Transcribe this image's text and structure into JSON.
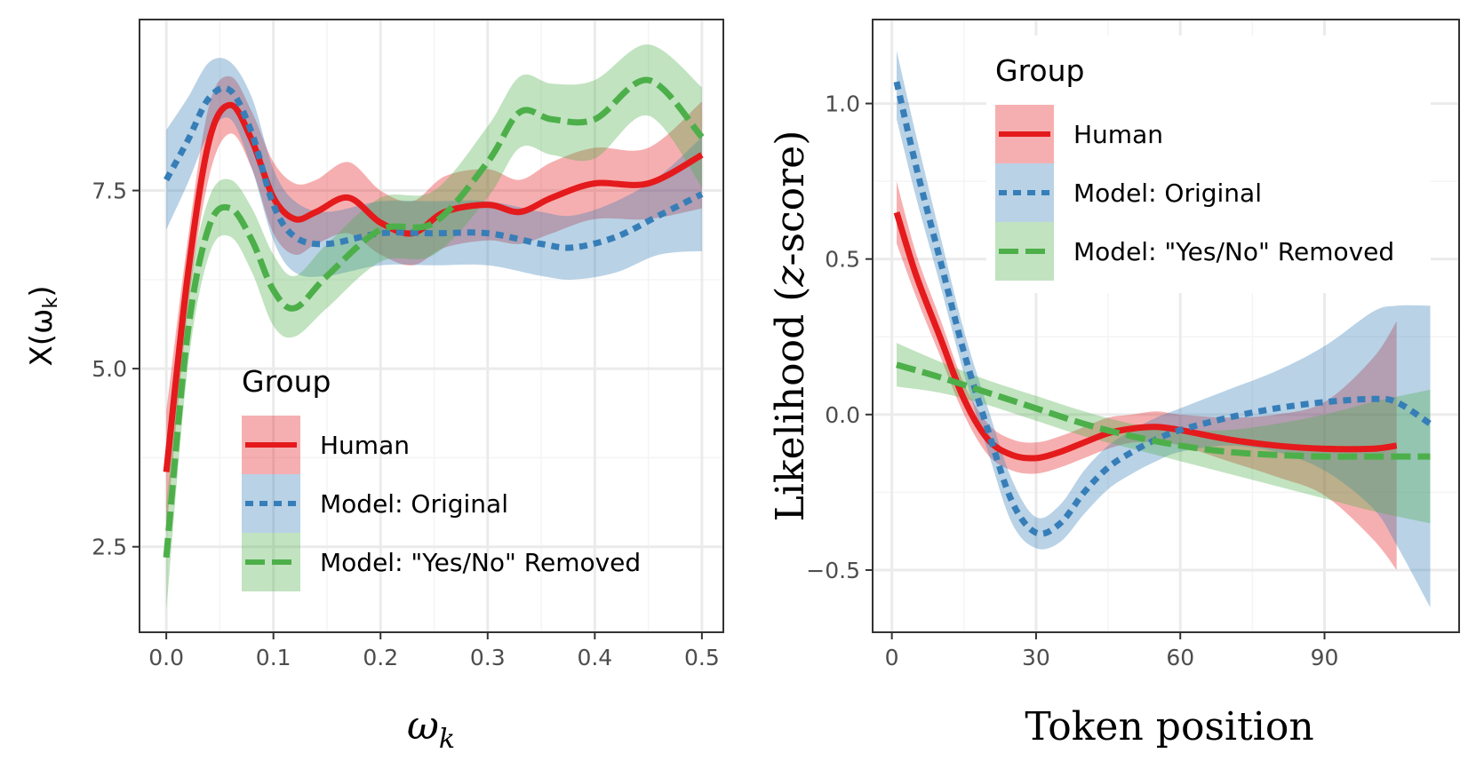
{
  "chart_data": [
    {
      "type": "line",
      "xlabel": "ω",
      "xlabel_subscript": "k",
      "ylabel": "X(ω",
      "ylabel_subscript": "k",
      "ylabel_close": ")",
      "xlim": [
        -0.025,
        0.52
      ],
      "ylim": [
        1.3,
        9.9
      ],
      "xticks": [
        0.0,
        0.1,
        0.2,
        0.3,
        0.4,
        0.5
      ],
      "xtick_labels": [
        "0.0",
        "0.1",
        "0.2",
        "0.3",
        "0.4",
        "0.5"
      ],
      "yticks": [
        2.5,
        5.0,
        7.5
      ],
      "ytick_labels": [
        "2.5",
        "5.0",
        "7.5"
      ],
      "legend": {
        "title": "Group",
        "position": "bottom-center",
        "entries": [
          "Human",
          "Model: Original",
          "Model: \"Yes/No\" Removed"
        ]
      },
      "series": [
        {
          "name": "Human",
          "color": "#e41a1c",
          "dash": "solid",
          "x": [
            0.0,
            0.02,
            0.04,
            0.06,
            0.08,
            0.1,
            0.12,
            0.14,
            0.17,
            0.2,
            0.23,
            0.26,
            0.3,
            0.33,
            0.36,
            0.4,
            0.45,
            0.5
          ],
          "y": [
            3.55,
            6.3,
            8.2,
            8.7,
            8.2,
            7.4,
            7.1,
            7.2,
            7.4,
            7.05,
            6.9,
            7.2,
            7.3,
            7.2,
            7.4,
            7.6,
            7.6,
            8.0
          ],
          "lower": [
            2.7,
            5.8,
            7.7,
            8.3,
            7.8,
            6.9,
            6.6,
            6.75,
            6.9,
            6.6,
            6.45,
            6.7,
            6.8,
            6.75,
            6.9,
            7.1,
            7.1,
            7.25
          ],
          "upper": [
            4.4,
            6.8,
            8.7,
            9.1,
            8.6,
            7.9,
            7.6,
            7.65,
            7.9,
            7.5,
            7.35,
            7.7,
            7.8,
            7.65,
            7.9,
            8.1,
            8.1,
            8.75
          ]
        },
        {
          "name": "Model: Original",
          "color": "#377eb8",
          "dash": "dotted",
          "x": [
            0.0,
            0.02,
            0.04,
            0.06,
            0.08,
            0.1,
            0.12,
            0.15,
            0.2,
            0.25,
            0.3,
            0.35,
            0.38,
            0.42,
            0.46,
            0.5
          ],
          "y": [
            7.65,
            8.2,
            8.8,
            8.9,
            8.3,
            7.3,
            6.85,
            6.75,
            6.9,
            6.9,
            6.9,
            6.75,
            6.7,
            6.85,
            7.15,
            7.45
          ],
          "lower": [
            6.95,
            7.6,
            8.3,
            8.5,
            7.8,
            6.8,
            6.35,
            6.3,
            6.45,
            6.45,
            6.45,
            6.3,
            6.25,
            6.35,
            6.6,
            6.65
          ],
          "upper": [
            8.35,
            8.8,
            9.3,
            9.3,
            8.8,
            7.8,
            7.35,
            7.2,
            7.35,
            7.35,
            7.35,
            7.2,
            7.15,
            7.35,
            7.7,
            8.25
          ]
        },
        {
          "name": "Model: \"Yes/No\" Removed",
          "color": "#4daf4a",
          "dash": "dashed",
          "x": [
            0.0,
            0.02,
            0.04,
            0.06,
            0.08,
            0.1,
            0.12,
            0.15,
            0.2,
            0.25,
            0.3,
            0.33,
            0.36,
            0.4,
            0.45,
            0.5
          ],
          "y": [
            2.35,
            5.5,
            7.0,
            7.25,
            6.8,
            6.1,
            5.85,
            6.3,
            6.95,
            7.05,
            7.9,
            8.6,
            8.5,
            8.5,
            9.05,
            8.25
          ],
          "lower": [
            1.6,
            5.0,
            6.6,
            6.85,
            6.35,
            5.6,
            5.45,
            5.85,
            6.5,
            6.6,
            7.4,
            8.1,
            8.0,
            7.95,
            8.55,
            7.55
          ],
          "upper": [
            3.1,
            6.0,
            7.4,
            7.65,
            7.25,
            6.6,
            6.3,
            6.75,
            7.4,
            7.5,
            8.4,
            9.1,
            9.0,
            9.05,
            9.55,
            8.95
          ]
        }
      ]
    },
    {
      "type": "line",
      "xlabel": "Token position",
      "ylabel": "Likelihood (",
      "ylabel_italic": "z",
      "ylabel_close": "-score)",
      "xlim": [
        -4,
        118
      ],
      "ylim": [
        -0.7,
        1.27
      ],
      "xticks": [
        0,
        30,
        60,
        90
      ],
      "xtick_labels": [
        "0",
        "30",
        "60",
        "90"
      ],
      "yticks": [
        -0.5,
        0.0,
        0.5,
        1.0
      ],
      "ytick_labels": [
        "−0.5",
        "0.0",
        "0.5",
        "1.0"
      ],
      "legend": {
        "title": "Group",
        "position": "top-right",
        "entries": [
          "Human",
          "Model: Original",
          "Model: \"Yes/No\" Removed"
        ]
      },
      "series": [
        {
          "name": "Human",
          "color": "#e41a1c",
          "dash": "solid",
          "x": [
            1,
            5,
            10,
            15,
            20,
            25,
            30,
            35,
            40,
            45,
            50,
            55,
            60,
            70,
            80,
            90,
            100,
            105
          ],
          "y": [
            0.65,
            0.45,
            0.25,
            0.05,
            -0.08,
            -0.13,
            -0.14,
            -0.12,
            -0.09,
            -0.06,
            -0.045,
            -0.04,
            -0.05,
            -0.08,
            -0.1,
            -0.11,
            -0.11,
            -0.1
          ],
          "lower": [
            0.55,
            0.38,
            0.19,
            0.0,
            -0.13,
            -0.18,
            -0.19,
            -0.17,
            -0.14,
            -0.11,
            -0.09,
            -0.09,
            -0.1,
            -0.15,
            -0.2,
            -0.26,
            -0.4,
            -0.5
          ],
          "upper": [
            0.75,
            0.52,
            0.31,
            0.1,
            -0.03,
            -0.08,
            -0.09,
            -0.07,
            -0.04,
            -0.01,
            0.0,
            0.01,
            0.0,
            -0.01,
            0.0,
            0.04,
            0.18,
            0.3
          ]
        },
        {
          "name": "Model: Original",
          "color": "#377eb8",
          "dash": "dotted",
          "x": [
            1,
            5,
            10,
            15,
            20,
            25,
            30,
            35,
            40,
            45,
            50,
            55,
            60,
            70,
            80,
            90,
            100,
            105,
            112
          ],
          "y": [
            1.07,
            0.8,
            0.5,
            0.2,
            -0.05,
            -0.28,
            -0.38,
            -0.35,
            -0.25,
            -0.17,
            -0.12,
            -0.08,
            -0.05,
            -0.01,
            0.02,
            0.04,
            0.05,
            0.04,
            -0.03
          ],
          "lower": [
            0.95,
            0.7,
            0.42,
            0.13,
            -0.12,
            -0.35,
            -0.43,
            -0.41,
            -0.32,
            -0.24,
            -0.19,
            -0.15,
            -0.12,
            -0.1,
            -0.12,
            -0.18,
            -0.3,
            -0.42,
            -0.62
          ],
          "upper": [
            1.17,
            0.9,
            0.58,
            0.27,
            0.02,
            -0.21,
            -0.33,
            -0.29,
            -0.18,
            -0.1,
            -0.05,
            -0.01,
            0.02,
            0.08,
            0.14,
            0.22,
            0.33,
            0.35,
            0.35
          ]
        },
        {
          "name": "Model: \"Yes/No\" Removed",
          "color": "#4daf4a",
          "dash": "dashed",
          "x": [
            1,
            10,
            20,
            30,
            40,
            50,
            60,
            70,
            80,
            90,
            100,
            112
          ],
          "y": [
            0.16,
            0.12,
            0.07,
            0.02,
            -0.03,
            -0.07,
            -0.1,
            -0.12,
            -0.13,
            -0.135,
            -0.135,
            -0.135
          ],
          "lower": [
            0.09,
            0.07,
            0.03,
            -0.02,
            -0.07,
            -0.11,
            -0.15,
            -0.19,
            -0.23,
            -0.27,
            -0.31,
            -0.35
          ],
          "upper": [
            0.23,
            0.17,
            0.11,
            0.06,
            0.01,
            -0.03,
            -0.05,
            -0.05,
            -0.03,
            0.0,
            0.04,
            0.08
          ]
        }
      ]
    }
  ]
}
